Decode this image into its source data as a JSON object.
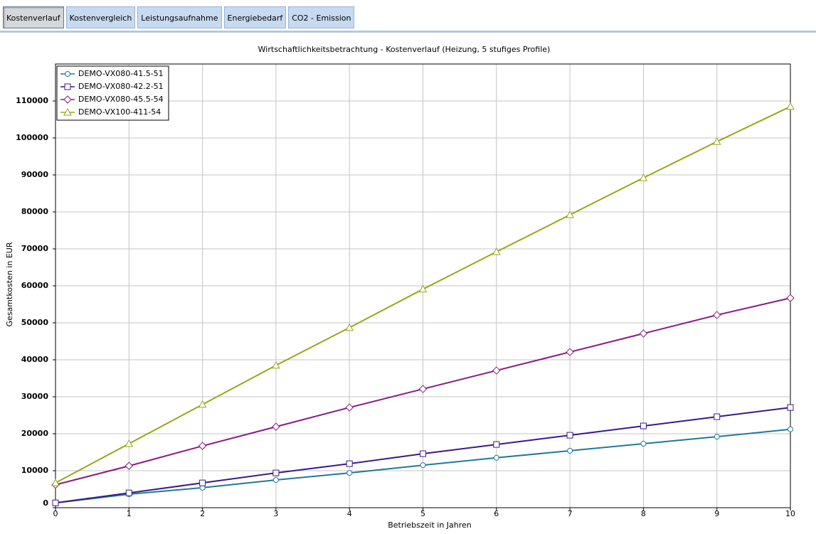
{
  "tabs": [
    {
      "label": "Kostenverlauf",
      "selected": true
    },
    {
      "label": "Kostenvergleich",
      "selected": false
    },
    {
      "label": "Leistungsaufnahme",
      "selected": false
    },
    {
      "label": "Energiebedarf",
      "selected": false
    },
    {
      "label": "CO2 - Emission",
      "selected": false
    }
  ],
  "chart_data": {
    "type": "line",
    "title": "Wirtschaftlichkeitsbetrachtung - Kostenverlauf (Heizung, 5 stufiges Profile)",
    "x_label": "Betriebszeit in Jahren",
    "y_label": "Gesamtkosten in EUR",
    "x": [
      0,
      1,
      2,
      3,
      4,
      5,
      6,
      7,
      8,
      9,
      10
    ],
    "series": [
      {
        "name": "DEMO-VX080-41.5-51",
        "color": "#1f7a9a",
        "marker": "circle",
        "values": [
          1300,
          3650,
          5400,
          7500,
          9400,
          11500,
          13500,
          15400,
          17300,
          19200,
          21200
        ]
      },
      {
        "name": "DEMO-VX080-42.2-51",
        "color": "#3a1a8a",
        "marker": "square",
        "values": [
          1300,
          4000,
          6700,
          9400,
          11900,
          14600,
          17100,
          19600,
          22100,
          24600,
          27100
        ]
      },
      {
        "name": "DEMO-VX080-45.5-54",
        "color": "#8a1a80",
        "marker": "diamond",
        "values": [
          6200,
          11300,
          16700,
          21900,
          27100,
          32100,
          37100,
          42100,
          47100,
          52100,
          56700
        ]
      },
      {
        "name": "DEMO-VX100-411-54",
        "color": "#9aa61a",
        "marker": "triangle",
        "values": [
          6700,
          17300,
          27900,
          38500,
          48700,
          59100,
          69200,
          79200,
          89200,
          99000,
          108500
        ]
      }
    ],
    "xlim": [
      0,
      10
    ],
    "xticks": [
      0,
      1,
      2,
      3,
      4,
      5,
      6,
      7,
      8,
      9,
      10
    ],
    "ylim": [
      0,
      120000
    ],
    "yticks": [
      0,
      10000,
      20000,
      30000,
      40000,
      50000,
      60000,
      70000,
      80000,
      90000,
      100000,
      110000
    ],
    "grid": true,
    "legend": "top-left"
  }
}
